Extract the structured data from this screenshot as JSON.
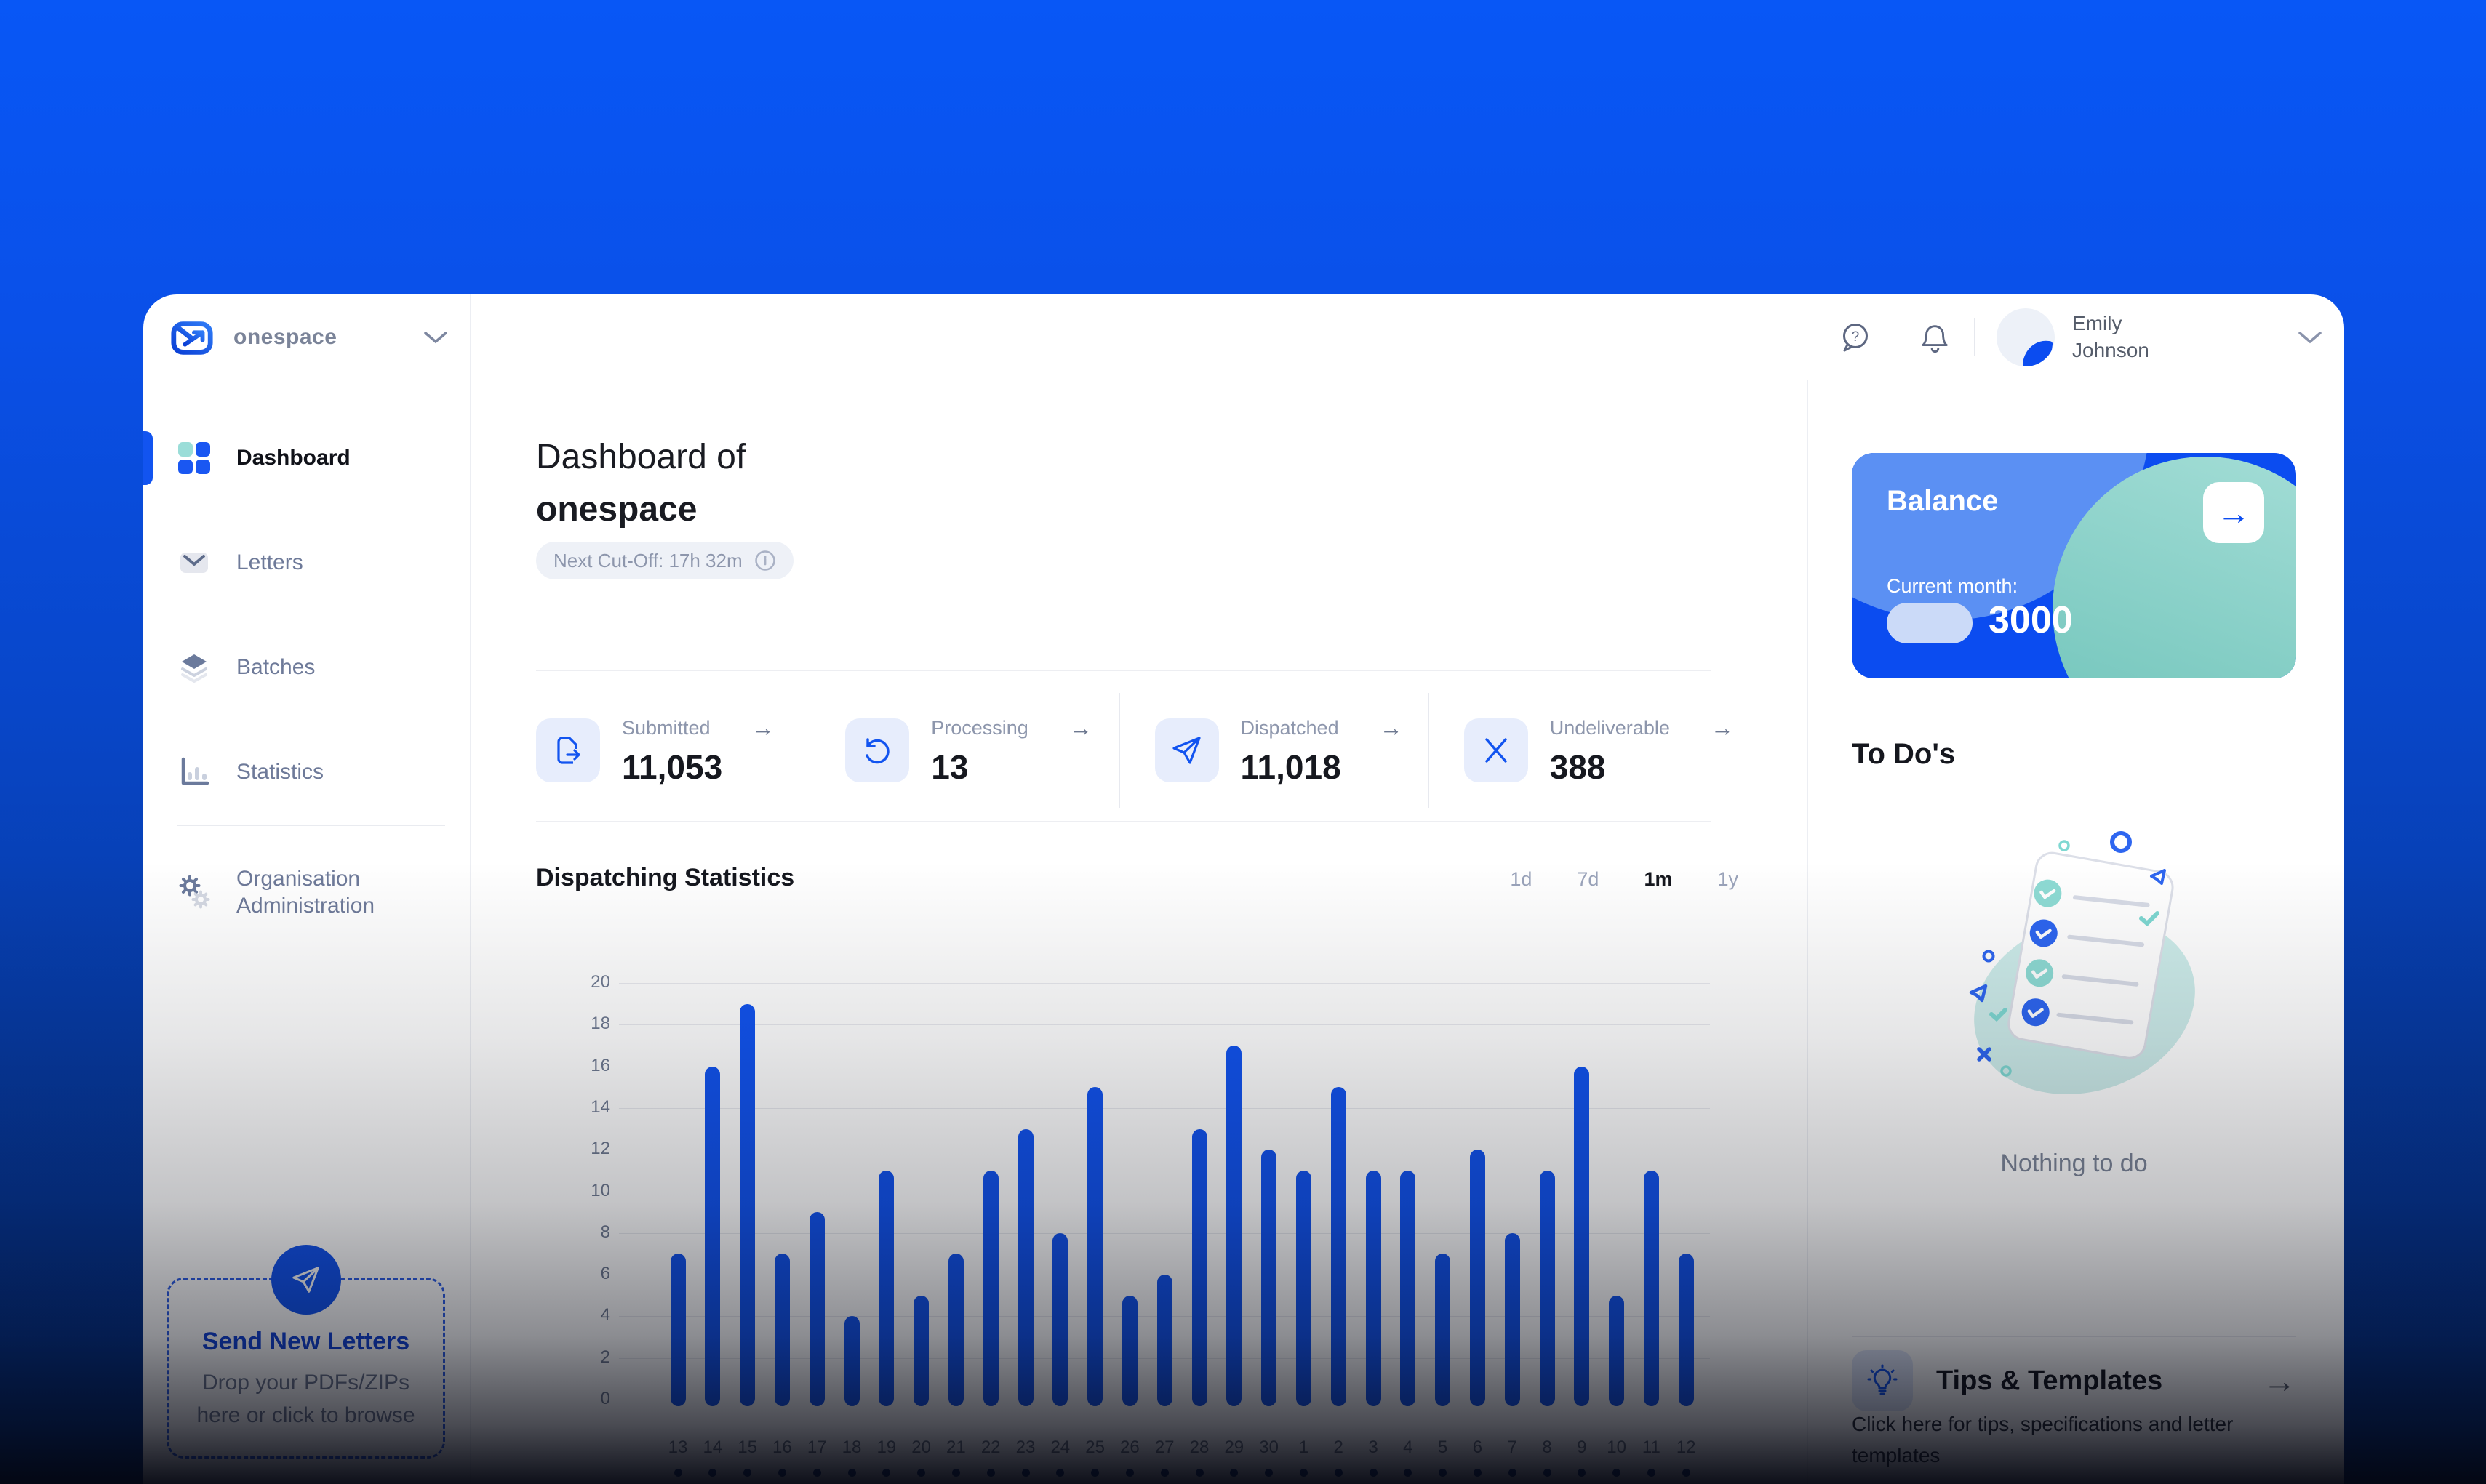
{
  "header": {
    "brand": "onespace",
    "user": {
      "name": "Emily Johnson"
    }
  },
  "sidebar": {
    "items": [
      {
        "label": "Dashboard",
        "icon": "grid-icon",
        "active": true
      },
      {
        "label": "Letters",
        "icon": "envelope-icon",
        "active": false
      },
      {
        "label": "Batches",
        "icon": "layers-icon",
        "active": false
      },
      {
        "label": "Statistics",
        "icon": "bar-chart-icon",
        "active": false
      },
      {
        "label": "Organisation Administration",
        "icon": "gears-icon",
        "active": false
      }
    ],
    "dropzone": {
      "title": "Send New Letters",
      "subtitle": "Drop your PDFs/ZIPs here or click to browse"
    }
  },
  "main": {
    "title_prefix": "Dashboard of",
    "title_org": "onespace",
    "cutoff_label": "Next Cut-Off: 17h 32m",
    "stats": [
      {
        "label": "Submitted",
        "value": "11,053",
        "icon": "document-out-icon"
      },
      {
        "label": "Processing",
        "value": "13",
        "icon": "refresh-icon"
      },
      {
        "label": "Dispatched",
        "value": "11,018",
        "icon": "paper-plane-icon"
      },
      {
        "label": "Undeliverable",
        "value": "388",
        "icon": "x-icon"
      }
    ],
    "chart_section_title": "Dispatching Statistics",
    "ranges": [
      {
        "label": "1d",
        "active": false
      },
      {
        "label": "7d",
        "active": false
      },
      {
        "label": "1m",
        "active": true
      },
      {
        "label": "1y",
        "active": false
      }
    ],
    "arrow_glyph": "→"
  },
  "chart_data": {
    "type": "bar",
    "title": "Dispatching Statistics",
    "categories": [
      "13",
      "14",
      "15",
      "16",
      "17",
      "18",
      "19",
      "20",
      "21",
      "22",
      "23",
      "24",
      "25",
      "26",
      "27",
      "28",
      "29",
      "30",
      "1",
      "2",
      "3",
      "4",
      "5",
      "6",
      "7",
      "8",
      "9",
      "10",
      "11",
      "12"
    ],
    "values": [
      7,
      16,
      19,
      7,
      9,
      4,
      11,
      5,
      7,
      11,
      13,
      8,
      15,
      5,
      6,
      13,
      17,
      12,
      11,
      15,
      11,
      11,
      7,
      12,
      8,
      11,
      16,
      5,
      11,
      7
    ],
    "xlabel": "",
    "ylabel": "",
    "ylim": [
      0,
      20
    ],
    "ytick_step": 2,
    "grid": true,
    "legend": false,
    "bar_color": "#1254f0"
  },
  "right_panel": {
    "balance": {
      "title": "Balance",
      "period_label": "Current month:",
      "amount": "3000",
      "arrow_glyph": "→"
    },
    "todos": {
      "title": "To Do's",
      "empty_text": "Nothing to do"
    },
    "tips": {
      "title": "Tips & Templates",
      "subtitle": "Click here for tips, specifications and letter templates",
      "arrow_glyph": "→"
    }
  },
  "colors": {
    "accent": "#1254f0",
    "bar": "#1254f0",
    "balance_bg": "#0b4cf0",
    "teal": "#7fd8d2",
    "heading": "#16181f",
    "muted": "#8d96ac",
    "sidebar_inactive": "#6e7a99"
  }
}
